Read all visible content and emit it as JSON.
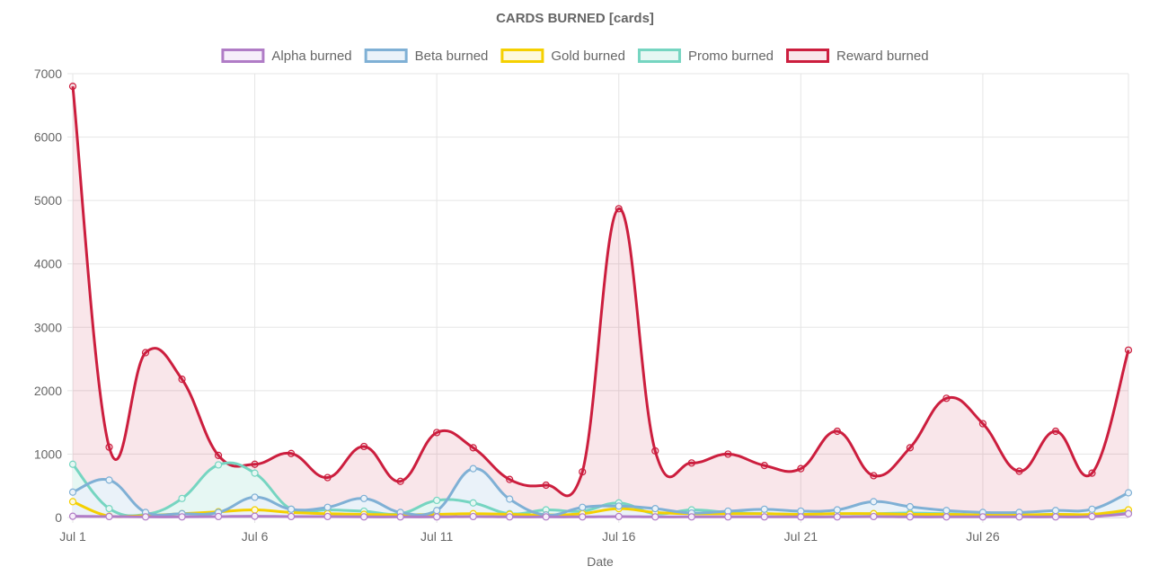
{
  "chart_data": {
    "type": "line",
    "title": "CARDS BURNED [cards]",
    "xlabel": "Date",
    "ylabel": "",
    "ylim": [
      0,
      7000
    ],
    "yticks": [
      "0",
      "1000",
      "2000",
      "3000",
      "4000",
      "5000",
      "6000",
      "7000"
    ],
    "x": [
      "Jul 1",
      "Jul 2",
      "Jul 3",
      "Jul 4",
      "Jul 5",
      "Jul 6",
      "Jul 7",
      "Jul 8",
      "Jul 9",
      "Jul 10",
      "Jul 11",
      "Jul 12",
      "Jul 13",
      "Jul 14",
      "Jul 15",
      "Jul 16",
      "Jul 17",
      "Jul 18",
      "Jul 19",
      "Jul 20",
      "Jul 21",
      "Jul 22",
      "Jul 23",
      "Jul 24",
      "Jul 25",
      "Jul 26",
      "Jul 27",
      "Jul 28",
      "Jul 29",
      "Jul 30"
    ],
    "xtick_labels": [
      "Jul 1",
      "Jul 6",
      "Jul 11",
      "Jul 16",
      "Jul 21",
      "Jul 26"
    ],
    "legend_position": "top",
    "grid": true,
    "series": [
      {
        "name": "Alpha burned",
        "color": "#b07cc6",
        "fill": "#f6eefa",
        "values": [
          20,
          15,
          10,
          10,
          15,
          20,
          15,
          15,
          10,
          10,
          10,
          15,
          10,
          10,
          10,
          15,
          10,
          10,
          10,
          10,
          10,
          10,
          15,
          10,
          10,
          10,
          10,
          10,
          15,
          60
        ]
      },
      {
        "name": "Beta burned",
        "color": "#7fb0d5",
        "fill": "#eaf2f9",
        "values": [
          400,
          590,
          80,
          60,
          80,
          320,
          130,
          160,
          300,
          80,
          110,
          770,
          290,
          40,
          160,
          180,
          140,
          70,
          100,
          130,
          100,
          120,
          250,
          170,
          110,
          80,
          80,
          110,
          130,
          390
        ]
      },
      {
        "name": "Gold burned",
        "color": "#f5d000",
        "fill": "#fdf9dd",
        "values": [
          250,
          20,
          30,
          60,
          90,
          120,
          80,
          60,
          50,
          40,
          50,
          60,
          50,
          40,
          60,
          140,
          80,
          60,
          60,
          60,
          50,
          60,
          60,
          50,
          50,
          40,
          40,
          50,
          50,
          120
        ]
      },
      {
        "name": "Promo burned",
        "color": "#76d5c1",
        "fill": "#e6f7f3",
        "values": [
          840,
          140,
          50,
          300,
          830,
          700,
          130,
          120,
          100,
          60,
          270,
          230,
          60,
          120,
          100,
          230,
          60,
          120,
          80,
          60,
          50,
          60,
          60,
          70,
          60,
          40,
          40,
          50,
          40,
          70
        ]
      },
      {
        "name": "Reward burned",
        "color": "#cc1e3e",
        "fill": "rgba(204,30,62,0.11)",
        "values": [
          6800,
          1110,
          2600,
          2180,
          980,
          840,
          1010,
          630,
          1120,
          570,
          1340,
          1100,
          600,
          510,
          720,
          4870,
          1050,
          860,
          1000,
          820,
          770,
          1360,
          660,
          1100,
          1880,
          1480,
          730,
          1360,
          700,
          2640
        ]
      }
    ]
  }
}
